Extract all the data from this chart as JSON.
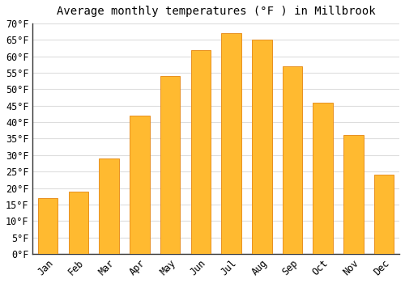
{
  "title": "Average monthly temperatures (°F ) in Millbrook",
  "months": [
    "Jan",
    "Feb",
    "Mar",
    "Apr",
    "May",
    "Jun",
    "Jul",
    "Aug",
    "Sep",
    "Oct",
    "Nov",
    "Dec"
  ],
  "values": [
    17,
    19,
    29,
    42,
    54,
    62,
    67,
    65,
    57,
    46,
    36,
    24
  ],
  "bar_color": "#FFBA30",
  "bar_edge_color": "#E89020",
  "background_color": "#FFFFFF",
  "plot_bg_color": "#FFFFFF",
  "grid_color": "#DDDDDD",
  "ylim": [
    0,
    70
  ],
  "yticks": [
    0,
    5,
    10,
    15,
    20,
    25,
    30,
    35,
    40,
    45,
    50,
    55,
    60,
    65,
    70
  ],
  "title_fontsize": 10,
  "tick_fontsize": 8.5
}
